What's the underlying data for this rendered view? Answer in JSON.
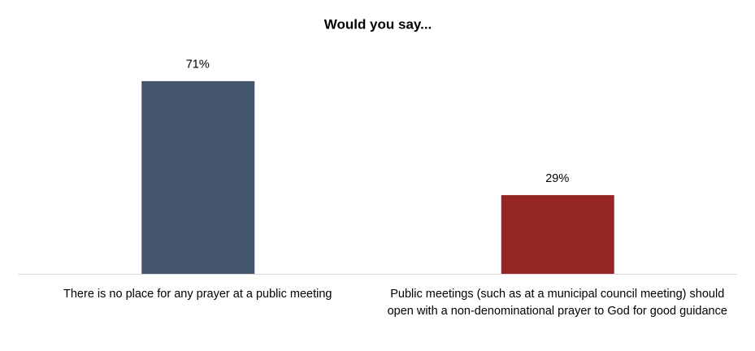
{
  "chart_data": {
    "type": "bar",
    "title": "Would you say...",
    "categories": [
      "There is no place for any prayer at a public meeting",
      "Public meetings (such as at a municipal council meeting) should open with a non-denominational prayer to God for good guidance"
    ],
    "values": [
      71,
      29
    ],
    "value_labels": [
      "71%",
      "29%"
    ],
    "colors": [
      "#44546a",
      "#952623"
    ]
  }
}
